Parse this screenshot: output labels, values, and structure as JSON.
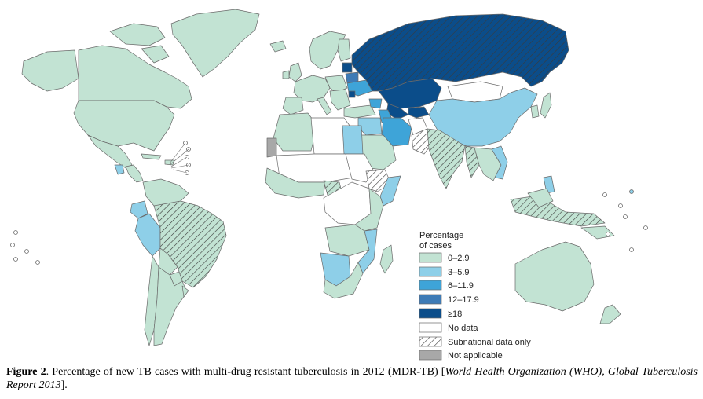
{
  "legend": {
    "title_line1": "Percentage",
    "title_line2": "of cases",
    "items": [
      {
        "label": "0–2.9",
        "color": "#c2e3d3",
        "pattern": false
      },
      {
        "label": "3–5.9",
        "color": "#8ecfe8",
        "pattern": false
      },
      {
        "label": "6–11.9",
        "color": "#3ea4d8",
        "pattern": false
      },
      {
        "label": "12–17.9",
        "color": "#3e7bb6",
        "pattern": false
      },
      {
        "label": "≥18",
        "color": "#0b4d8a",
        "pattern": false
      },
      {
        "label": "No data",
        "color": "#ffffff",
        "pattern": false
      },
      {
        "label": "Subnational data only",
        "color": "#ffffff",
        "pattern": true
      },
      {
        "label": "Not applicable",
        "color": "#a8a8a8",
        "pattern": false
      }
    ]
  },
  "caption": {
    "label": "Figure 2",
    "text": ". Percentage of new TB cases with multi-drug resistant tuberculosis in 2012 (MDR-TB) [",
    "source": "World Health Organization (WHO), Global Tuberculosis Report 2013",
    "end": "]."
  },
  "colors": {
    "ocean": "#ffffff",
    "border": "#6a6a6a",
    "low": "#c2e3d3",
    "mid": "#8ecfe8",
    "high": "#3ea4d8",
    "higher": "#3e7bb6",
    "highest": "#0b4d8a",
    "nodata": "#ffffff",
    "na": "#a8a8a8"
  }
}
